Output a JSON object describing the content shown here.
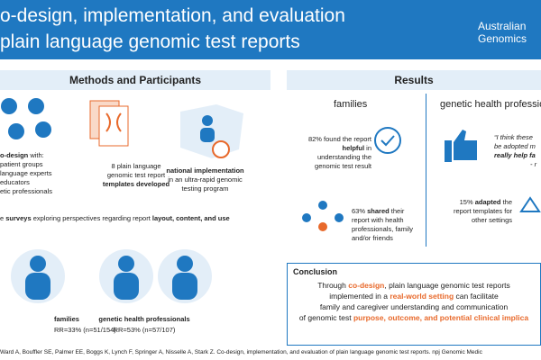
{
  "header": {
    "title_lines": [
      "o-design, implementation, and evaluation",
      "plain language genomic test reports"
    ],
    "logo_lines": [
      "Australian",
      "Genomics"
    ]
  },
  "methods": {
    "heading": "Methods and Participants",
    "codesign": {
      "bold": "o-design",
      "rest": " with:",
      "items": [
        "patient groups",
        "language experts",
        "educators",
        "etic professionals"
      ]
    },
    "templates": {
      "pre": "8 plain language genomic test report ",
      "bold": "templates developed"
    },
    "national": {
      "bold": "national implementation",
      "rest": "in an ultra-rapid genomic testing program"
    },
    "surveys": {
      "pre": "e ",
      "bold": "surveys",
      "mid": " exploring perspectives regarding report ",
      "bold2": "layout, content, and use"
    },
    "groups": [
      {
        "label": "families",
        "rr": "RR=33% (n=51/154)"
      },
      {
        "label": "genetic health professionals",
        "rr": "RR=53% (n=57/107)"
      }
    ]
  },
  "results": {
    "heading": "Results",
    "columns": [
      "families",
      "genetic health professio"
    ],
    "helpful": {
      "pre": "82% found the report ",
      "bold": "helpful",
      "post": " in understanding the genomic test result"
    },
    "shared": {
      "pre": "63% ",
      "bold": "shared",
      "post": " their report with health professionals, family and/or friends"
    },
    "quote": [
      "“I think these",
      "be adopted m",
      "really help fa",
      "- r"
    ],
    "adapted": {
      "pre": "15% ",
      "bold": "adapted",
      "post": " the report templates for other settings"
    }
  },
  "conclusion": {
    "heading": "Conclusion",
    "lines": [
      [
        {
          "text": "Through ",
          "highlight": false
        },
        {
          "text": "co-design",
          "highlight": true
        },
        {
          "text": ", plain language genomic test reports",
          "highlight": false
        }
      ],
      [
        {
          "text": "implemented in a ",
          "highlight": false
        },
        {
          "text": "real-world setting",
          "highlight": true
        },
        {
          "text": " can facilitate",
          "highlight": false
        }
      ],
      [
        {
          "text": "family and caregiver understanding and communication",
          "highlight": false
        }
      ],
      [
        {
          "text": "of genomic test ",
          "highlight": false
        },
        {
          "text": "purpose, outcome, and potential clinical implica",
          "highlight": true
        }
      ]
    ]
  },
  "citation": "Ward A, Bouffler SE, Palmer EE, Boggs K, Lynch F, Springer A, Nisselle A, Stark Z. Co-design, implementation, and evaluation of plain language genomic test reports. npj Genomic Medic"
}
